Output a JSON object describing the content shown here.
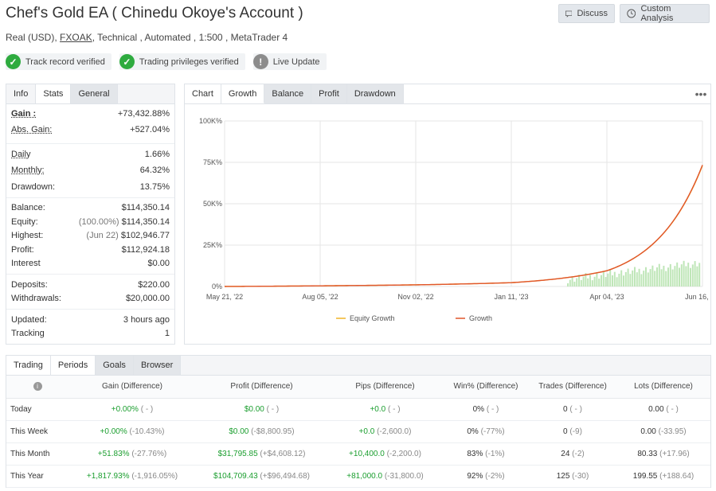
{
  "header": {
    "title": "Chef's Gold EA ( Chinedu Okoye's Account )",
    "account_type": "Real (USD),",
    "broker": "FXOAK",
    "details": ", Technical , Automated , 1:500 , MetaTrader 4",
    "discuss_label": "Discuss",
    "custom_analysis_label": "Custom Analysis"
  },
  "badges": [
    {
      "label": "Track record verified",
      "icon": "check-icon",
      "color": "#2eab3f"
    },
    {
      "label": "Trading privileges verified",
      "icon": "check-icon",
      "color": "#2eab3f"
    },
    {
      "label": "Live Update",
      "icon": "exclamation-icon",
      "color": "#8c8c8c"
    }
  ],
  "stats_panel": {
    "tabs": [
      "Info",
      "Stats",
      "General"
    ],
    "gain_label": "Gain :",
    "gain_value": "+73,432.88%",
    "abs_gain_label": "Abs. Gain:",
    "abs_gain_value": "+527.04%",
    "daily_label": "Daily",
    "daily_value": "1.66%",
    "monthly_label": "Monthly:",
    "monthly_value": "64.32%",
    "drawdown_label": "Drawdown:",
    "drawdown_value": "13.75%",
    "balance_label": "Balance:",
    "balance_value": "$114,350.14",
    "equity_label": "Equity:",
    "equity_pct": "(100.00%)",
    "equity_value": "$114,350.14",
    "highest_label": "Highest:",
    "highest_date": "(Jun 22)",
    "highest_value": "$102,946.77",
    "profit_label": "Profit:",
    "profit_value": "$112,924.18",
    "interest_label": "Interest",
    "interest_value": "$0.00",
    "deposits_label": "Deposits:",
    "deposits_value": "$220.00",
    "withdrawals_label": "Withdrawals:",
    "withdrawals_value": "$20,000.00",
    "updated_label": "Updated:",
    "updated_value": "3 hours ago",
    "tracking_label": "Tracking",
    "tracking_value": "1"
  },
  "chart_panel": {
    "tabs": [
      "Chart",
      "Growth",
      "Balance",
      "Profit",
      "Drawdown"
    ],
    "menu_icon": "more-dots-icon"
  },
  "chart_data": {
    "type": "line",
    "x": [
      "May 21, '22",
      "Aug 05, '22",
      "Nov 02, '22",
      "Jan 11, '23",
      "Apr 04, '23",
      "Jun 16, '23"
    ],
    "yticks": [
      "0%",
      "25K%",
      "50K%",
      "75K%",
      "100K%"
    ],
    "ylim": [
      0,
      100000
    ],
    "grid": true,
    "legend_position": "bottom",
    "series": [
      {
        "name": "Equity Growth",
        "color": "#f0b429",
        "values": [
          0,
          400,
          1000,
          2300,
          9500,
          73000
        ]
      },
      {
        "name": "Growth",
        "color": "#e0552c",
        "values": [
          0,
          400,
          1000,
          2300,
          9500,
          73400
        ]
      }
    ],
    "colors": {
      "bars": "#bfe6b8"
    }
  },
  "trading_panel": {
    "tabs": [
      "Trading",
      "Periods",
      "Goals",
      "Browser"
    ],
    "info_icon": "info-icon",
    "columns": [
      "Gain (Difference)",
      "Profit (Difference)",
      "Pips (Difference)",
      "Win% (Difference)",
      "Trades (Difference)",
      "Lots (Difference)"
    ],
    "rows": [
      {
        "period": "Today",
        "gain": "+0.00%",
        "gain_d": "( - )",
        "profit": "$0.00",
        "profit_d": "( - )",
        "pips": "+0.0",
        "pips_d": "( - )",
        "win": "0%",
        "win_d": "( - )",
        "trades": "0",
        "trades_d": "( - )",
        "lots": "0.00",
        "lots_d": "( - )"
      },
      {
        "period": "This Week",
        "gain": "+0.00%",
        "gain_d": "(-10.43%)",
        "profit": "$0.00",
        "profit_d": "(-$8,800.95)",
        "pips": "+0.0",
        "pips_d": "(-2,600.0)",
        "win": "0%",
        "win_d": "(-77%)",
        "trades": "0",
        "trades_d": "(-9)",
        "lots": "0.00",
        "lots_d": "(-33.95)"
      },
      {
        "period": "This Month",
        "gain": "+51.83%",
        "gain_d": "(-27.76%)",
        "profit": "$31,795.85",
        "profit_d": "(+$4,608.12)",
        "pips": "+10,400.0",
        "pips_d": "(-2,200.0)",
        "win": "83%",
        "win_d": "(-1%)",
        "trades": "24",
        "trades_d": "(-2)",
        "lots": "80.33",
        "lots_d": "(+17.96)"
      },
      {
        "period": "This Year",
        "gain": "+1,817.93%",
        "gain_d": "(-1,916.05%)",
        "profit": "$104,709.43",
        "profit_d": "(+$96,494.68)",
        "pips": "+81,000.0",
        "pips_d": "(-31,800.0)",
        "win": "92%",
        "win_d": "(-2%)",
        "trades": "125",
        "trades_d": "(-30)",
        "lots": "199.55",
        "lots_d": "(+188.64)"
      }
    ]
  }
}
